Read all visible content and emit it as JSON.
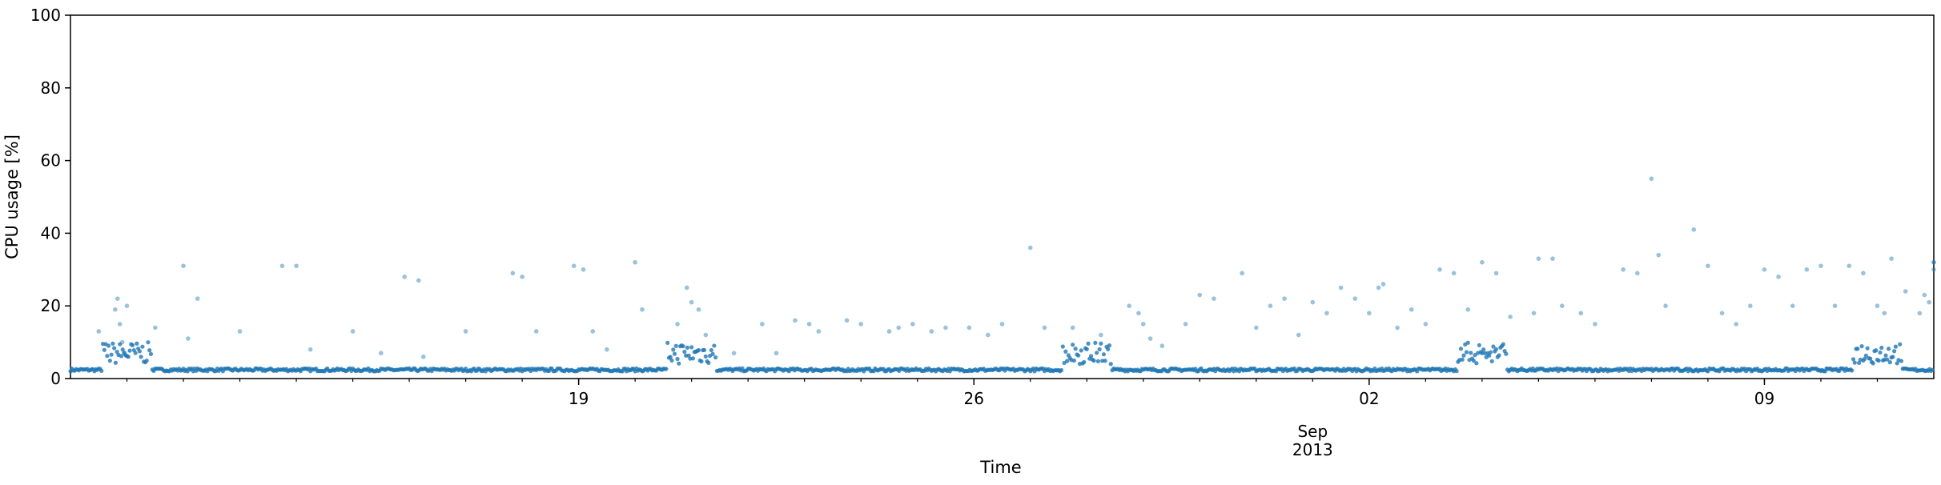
{
  "chart_data": {
    "type": "scatter",
    "title": "",
    "xlabel": "Time",
    "ylabel": "CPU usage [%]",
    "ylim": [
      0,
      100
    ],
    "xlim": [
      "2013-08-10",
      "2013-09-12"
    ],
    "y_ticks": [
      {
        "value": 0,
        "label": "0"
      },
      {
        "value": 20,
        "label": "20"
      },
      {
        "value": 40,
        "label": "40"
      },
      {
        "value": 60,
        "label": "60"
      },
      {
        "value": 80,
        "label": "80"
      },
      {
        "value": 100,
        "label": "100"
      }
    ],
    "x_major_ticks": [
      {
        "date": "2013-08-19",
        "label": "19"
      },
      {
        "date": "2013-08-26",
        "label": "26"
      },
      {
        "date": "2013-09-02",
        "label": "02"
      },
      {
        "date": "2013-09-09",
        "label": "09"
      }
    ],
    "x_secondary_label": {
      "date": "2013-09-01",
      "line1": "Sep",
      "line2": "2013"
    },
    "grid": false,
    "legend": "none",
    "point_color": "#1f77b4",
    "point_alpha": 0.45,
    "series": [
      {
        "baseline_level": 2,
        "points": [
          {
            "x": "2013-08-10 12:00",
            "y": 13
          },
          {
            "x": "2013-08-10 19:00",
            "y": 19
          },
          {
            "x": "2013-08-10 20:00",
            "y": 22
          },
          {
            "x": "2013-08-10 21:00",
            "y": 15
          },
          {
            "x": "2013-08-10 22:00",
            "y": 10
          },
          {
            "x": "2013-08-10 23:00",
            "y": 7
          },
          {
            "x": "2013-08-11 00:00",
            "y": 20
          },
          {
            "x": "2013-08-11 12:00",
            "y": 14
          },
          {
            "x": "2013-08-12 00:00",
            "y": 31
          },
          {
            "x": "2013-08-12 06:00",
            "y": 22
          },
          {
            "x": "2013-08-12 02:00",
            "y": 11
          },
          {
            "x": "2013-08-13 00:00",
            "y": 13
          },
          {
            "x": "2013-08-13 18:00",
            "y": 31
          },
          {
            "x": "2013-08-14 00:00",
            "y": 31
          },
          {
            "x": "2013-08-14 06:00",
            "y": 8
          },
          {
            "x": "2013-08-15 00:00",
            "y": 13
          },
          {
            "x": "2013-08-15 12:00",
            "y": 7
          },
          {
            "x": "2013-08-15 22:00",
            "y": 28
          },
          {
            "x": "2013-08-16 04:00",
            "y": 27
          },
          {
            "x": "2013-08-16 06:00",
            "y": 6
          },
          {
            "x": "2013-08-17 00:00",
            "y": 13
          },
          {
            "x": "2013-08-17 20:00",
            "y": 29
          },
          {
            "x": "2013-08-18 00:00",
            "y": 28
          },
          {
            "x": "2013-08-18 06:00",
            "y": 13
          },
          {
            "x": "2013-08-18 22:00",
            "y": 31
          },
          {
            "x": "2013-08-19 02:00",
            "y": 30
          },
          {
            "x": "2013-08-19 06:00",
            "y": 13
          },
          {
            "x": "2013-08-19 12:00",
            "y": 8
          },
          {
            "x": "2013-08-20 00:00",
            "y": 32
          },
          {
            "x": "2013-08-20 03:00",
            "y": 19
          },
          {
            "x": "2013-08-20 18:00",
            "y": 15
          },
          {
            "x": "2013-08-20 22:00",
            "y": 25
          },
          {
            "x": "2013-08-21 00:00",
            "y": 21
          },
          {
            "x": "2013-08-21 03:00",
            "y": 19
          },
          {
            "x": "2013-08-21 06:00",
            "y": 12
          },
          {
            "x": "2013-08-21 18:00",
            "y": 7
          },
          {
            "x": "2013-08-22 06:00",
            "y": 15
          },
          {
            "x": "2013-08-22 12:00",
            "y": 7
          },
          {
            "x": "2013-08-22 20:00",
            "y": 16
          },
          {
            "x": "2013-08-23 02:00",
            "y": 15
          },
          {
            "x": "2013-08-23 06:00",
            "y": 13
          },
          {
            "x": "2013-08-23 18:00",
            "y": 16
          },
          {
            "x": "2013-08-24 00:00",
            "y": 15
          },
          {
            "x": "2013-08-24 12:00",
            "y": 13
          },
          {
            "x": "2013-08-24 16:00",
            "y": 14
          },
          {
            "x": "2013-08-24 22:00",
            "y": 15
          },
          {
            "x": "2013-08-25 06:00",
            "y": 13
          },
          {
            "x": "2013-08-25 12:00",
            "y": 14
          },
          {
            "x": "2013-08-25 22:00",
            "y": 14
          },
          {
            "x": "2013-08-26 06:00",
            "y": 12
          },
          {
            "x": "2013-08-26 12:00",
            "y": 15
          },
          {
            "x": "2013-08-27 00:00",
            "y": 36
          },
          {
            "x": "2013-08-27 06:00",
            "y": 14
          },
          {
            "x": "2013-08-27 18:00",
            "y": 14
          },
          {
            "x": "2013-08-28 06:00",
            "y": 12
          },
          {
            "x": "2013-08-28 18:00",
            "y": 20
          },
          {
            "x": "2013-08-28 22:00",
            "y": 18
          },
          {
            "x": "2013-08-29 00:00",
            "y": 15
          },
          {
            "x": "2013-08-29 03:00",
            "y": 11
          },
          {
            "x": "2013-08-29 08:00",
            "y": 9
          },
          {
            "x": "2013-08-29 18:00",
            "y": 15
          },
          {
            "x": "2013-08-30 00:00",
            "y": 23
          },
          {
            "x": "2013-08-30 06:00",
            "y": 22
          },
          {
            "x": "2013-08-30 18:00",
            "y": 29
          },
          {
            "x": "2013-08-31 00:00",
            "y": 14
          },
          {
            "x": "2013-08-31 06:00",
            "y": 20
          },
          {
            "x": "2013-08-31 12:00",
            "y": 22
          },
          {
            "x": "2013-08-31 18:00",
            "y": 12
          },
          {
            "x": "2013-09-01 00:00",
            "y": 21
          },
          {
            "x": "2013-09-01 06:00",
            "y": 18
          },
          {
            "x": "2013-09-01 12:00",
            "y": 25
          },
          {
            "x": "2013-09-01 18:00",
            "y": 22
          },
          {
            "x": "2013-09-02 00:00",
            "y": 18
          },
          {
            "x": "2013-09-02 04:00",
            "y": 25
          },
          {
            "x": "2013-09-02 06:00",
            "y": 26
          },
          {
            "x": "2013-09-02 12:00",
            "y": 14
          },
          {
            "x": "2013-09-02 18:00",
            "y": 19
          },
          {
            "x": "2013-09-03 00:00",
            "y": 15
          },
          {
            "x": "2013-09-03 06:00",
            "y": 30
          },
          {
            "x": "2013-09-03 12:00",
            "y": 29
          },
          {
            "x": "2013-09-03 18:00",
            "y": 19
          },
          {
            "x": "2013-09-04 00:00",
            "y": 32
          },
          {
            "x": "2013-09-04 06:00",
            "y": 29
          },
          {
            "x": "2013-09-04 12:00",
            "y": 17
          },
          {
            "x": "2013-09-04 22:00",
            "y": 18
          },
          {
            "x": "2013-09-05 00:00",
            "y": 33
          },
          {
            "x": "2013-09-05 06:00",
            "y": 33
          },
          {
            "x": "2013-09-05 10:00",
            "y": 20
          },
          {
            "x": "2013-09-05 18:00",
            "y": 18
          },
          {
            "x": "2013-09-06 00:00",
            "y": 15
          },
          {
            "x": "2013-09-06 12:00",
            "y": 30
          },
          {
            "x": "2013-09-06 18:00",
            "y": 29
          },
          {
            "x": "2013-09-07 00:00",
            "y": 55
          },
          {
            "x": "2013-09-07 03:00",
            "y": 34
          },
          {
            "x": "2013-09-07 06:00",
            "y": 20
          },
          {
            "x": "2013-09-07 18:00",
            "y": 41
          },
          {
            "x": "2013-09-08 00:00",
            "y": 31
          },
          {
            "x": "2013-09-08 06:00",
            "y": 18
          },
          {
            "x": "2013-09-08 12:00",
            "y": 15
          },
          {
            "x": "2013-09-08 18:00",
            "y": 20
          },
          {
            "x": "2013-09-09 00:00",
            "y": 30
          },
          {
            "x": "2013-09-09 06:00",
            "y": 28
          },
          {
            "x": "2013-09-09 12:00",
            "y": 20
          },
          {
            "x": "2013-09-09 18:00",
            "y": 30
          },
          {
            "x": "2013-09-10 00:00",
            "y": 31
          },
          {
            "x": "2013-09-10 06:00",
            "y": 20
          },
          {
            "x": "2013-09-10 12:00",
            "y": 31
          },
          {
            "x": "2013-09-10 18:00",
            "y": 29
          },
          {
            "x": "2013-09-11 00:00",
            "y": 20
          },
          {
            "x": "2013-09-11 03:00",
            "y": 18
          },
          {
            "x": "2013-09-11 06:00",
            "y": 33
          },
          {
            "x": "2013-09-11 12:00",
            "y": 24
          },
          {
            "x": "2013-09-11 18:00",
            "y": 18
          },
          {
            "x": "2013-09-11 20:00",
            "y": 23
          },
          {
            "x": "2013-09-11 22:00",
            "y": 21
          },
          {
            "x": "2013-09-12 00:00",
            "y": 32
          },
          {
            "x": "2013-09-12 00:00",
            "y": 30
          },
          {
            "x": "2013-09-12 00:00",
            "y": 32
          }
        ]
      }
    ]
  }
}
